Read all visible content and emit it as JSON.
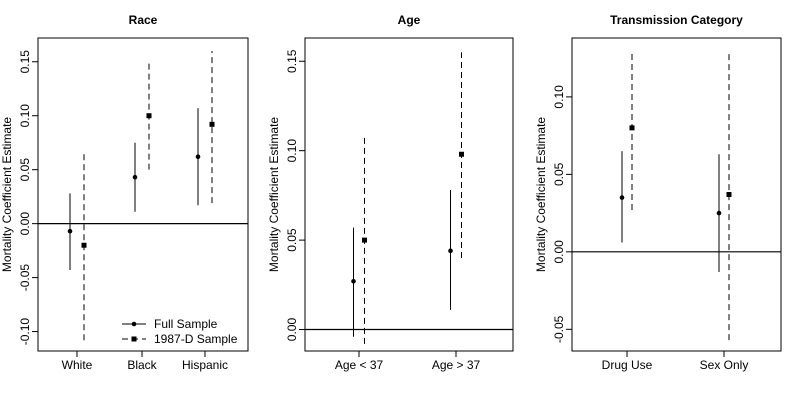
{
  "legend": {
    "placement": "bottom-right of first panel",
    "entries": [
      {
        "label": "Full Sample",
        "marker": "dot",
        "line": "solid"
      },
      {
        "label": "1987-D Sample",
        "marker": "square",
        "line": "dashed"
      }
    ]
  },
  "chart_data": [
    {
      "type": "scatter",
      "title": "Race",
      "ylabel": "Mortality Coefficient Estimate",
      "ylim": [
        -0.118,
        0.172
      ],
      "yticks": [
        -0.1,
        -0.05,
        0.0,
        0.05,
        0.1,
        0.15
      ],
      "ytick_labels": [
        "-0.10",
        "-0.05",
        "0.00",
        "0.05",
        "0.10",
        "0.15"
      ],
      "reference_line": 0,
      "categories": [
        "White",
        "Black",
        "Hispanic"
      ],
      "series": [
        {
          "name": "Full Sample",
          "estimates": [
            -0.007,
            0.043,
            0.062
          ],
          "lower": [
            -0.043,
            0.011,
            0.017
          ],
          "upper": [
            0.028,
            0.075,
            0.107
          ]
        },
        {
          "name": "1987-D Sample",
          "estimates": [
            -0.02,
            0.1,
            0.092
          ],
          "lower": [
            -0.108,
            0.05,
            0.019
          ],
          "upper": [
            0.068,
            0.149,
            0.16
          ]
        }
      ]
    },
    {
      "type": "scatter",
      "title": "Age",
      "ylabel": "Mortality Coefficient Estimate",
      "ylim": [
        -0.012,
        0.163
      ],
      "yticks": [
        0.0,
        0.05,
        0.1,
        0.15
      ],
      "ytick_labels": [
        "0.00",
        "0.05",
        "0.10",
        "0.15"
      ],
      "reference_line": 0,
      "categories": [
        "Age < 37",
        "Age > 37"
      ],
      "series": [
        {
          "name": "Full Sample",
          "estimates": [
            0.027,
            0.044
          ],
          "lower": [
            -0.004,
            0.011
          ],
          "upper": [
            0.057,
            0.078
          ]
        },
        {
          "name": "1987-D Sample",
          "estimates": [
            0.05,
            0.098
          ],
          "lower": [
            -0.008,
            0.04
          ],
          "upper": [
            0.108,
            0.155
          ]
        }
      ]
    },
    {
      "type": "scatter",
      "title": "Transmission Category",
      "ylabel": "Mortality Coefficient Estimate",
      "ylim": [
        -0.064,
        0.138
      ],
      "yticks": [
        -0.05,
        0.0,
        0.05,
        0.1
      ],
      "ytick_labels": [
        "-0.05",
        "0.00",
        "0.05",
        "0.10"
      ],
      "reference_line": 0,
      "categories": [
        "Drug Use",
        "Sex Only"
      ],
      "series": [
        {
          "name": "Full Sample",
          "estimates": [
            0.035,
            0.025
          ],
          "lower": [
            0.006,
            -0.013
          ],
          "upper": [
            0.065,
            0.063
          ]
        },
        {
          "name": "1987-D Sample",
          "estimates": [
            0.08,
            0.037
          ],
          "lower": [
            0.027,
            -0.057
          ],
          "upper": [
            0.13,
            0.129
          ]
        }
      ]
    }
  ]
}
